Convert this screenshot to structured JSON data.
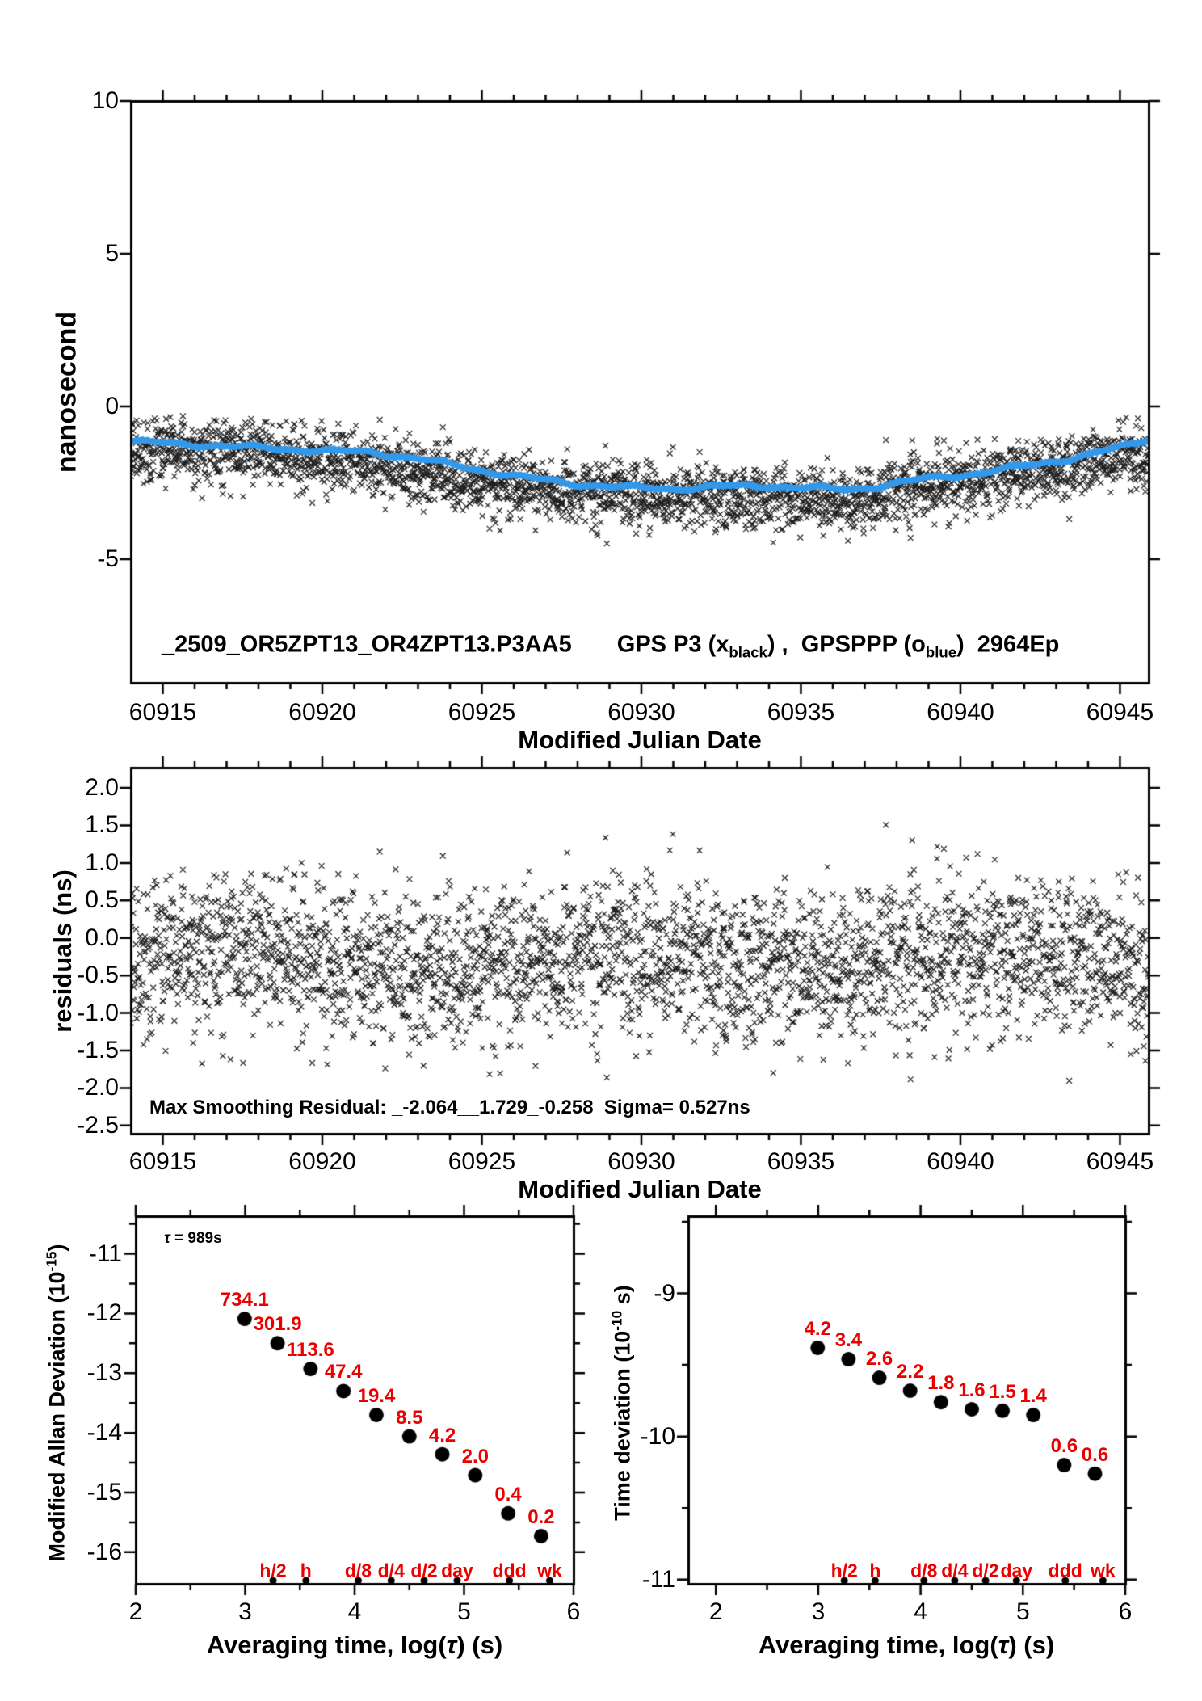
{
  "colors": {
    "black": "#000000",
    "blue": "#3399EB",
    "red": "#EB0000"
  },
  "chart_data": [
    {
      "id": "top-comparison",
      "type": "scatter",
      "title_file": "_2509_OR5ZPT13_OR4ZPT13.P3AA5",
      "legend": {
        "pre": "GPS P3 (x",
        "sub1": "black",
        "mid": ") ,  GPSPPP (o",
        "sub2": "blue",
        "post": ")  2964Ep"
      },
      "xlabel": "Modified Julian Date",
      "ylabel": "nanosecond",
      "xlim": [
        60914.0,
        60945.9
      ],
      "ylim": [
        -9.05,
        10.0
      ],
      "xticks": [
        60915,
        60920,
        60925,
        60930,
        60935,
        60940,
        60945
      ],
      "xtick_minor_step": 1,
      "yticks": [
        10,
        5,
        0,
        -5
      ],
      "ytick_labels": [
        "10",
        "5",
        "0",
        "-5"
      ],
      "epochs": 2964,
      "series": [
        {
          "name": "GPS P3",
          "marker": "x",
          "color": "#000000"
        },
        {
          "name": "GPSPPP smoothed",
          "marker": "o",
          "color": "#3399EB",
          "trend_x": [
            60914.0,
            60916,
            60918,
            60920,
            60921.5,
            60923,
            60925,
            60926.5,
            60928,
            60929.5,
            60931,
            60932.5,
            60934,
            60935.5,
            60936.5,
            60937.5,
            60939,
            60940.5,
            60942,
            60943.5,
            60945,
            60945.9
          ],
          "trend_y": [
            -1.15,
            -1.25,
            -1.35,
            -1.45,
            -1.5,
            -1.7,
            -2.1,
            -2.35,
            -2.55,
            -2.65,
            -2.7,
            -2.62,
            -2.6,
            -2.68,
            -2.72,
            -2.6,
            -2.35,
            -2.2,
            -1.95,
            -1.7,
            -1.35,
            -1.05
          ]
        }
      ],
      "noise": {
        "count": 2964,
        "sigma": 0.527,
        "mean": -0.3,
        "clip_min": -2.064,
        "clip_max": 1.729,
        "seed": 20250917
      }
    },
    {
      "id": "residuals",
      "type": "scatter",
      "xlabel": "Modified Julian Date",
      "ylabel": "residuals (ns)",
      "xlim": [
        60914.0,
        60945.9
      ],
      "ylim": [
        -2.61,
        2.27
      ],
      "xticks": [
        60915,
        60920,
        60925,
        60930,
        60935,
        60940,
        60945
      ],
      "xtick_minor_step": 1,
      "yticks": [
        2.0,
        1.5,
        1.0,
        0.5,
        0.0,
        -0.5,
        -1.0,
        -1.5,
        -2.0,
        -2.5
      ],
      "ytick_labels": [
        "2.0",
        "1.5",
        "1.0",
        "0.5",
        "0.0",
        "-0.5",
        "-1.0",
        "-1.5",
        "-2.0",
        "-2.5"
      ],
      "annotation": "Max Smoothing Residual: _-2.064__1.729_-0.258  Sigma= 0.527ns",
      "series": [
        {
          "name": "smoothing residuals",
          "marker": "x",
          "color": "#000000"
        }
      ]
    },
    {
      "id": "modified-allan-deviation",
      "type": "scatter",
      "xlabel_parts": {
        "pre": "Averaging time, log(",
        "tau": "τ",
        "post": ") (s)"
      },
      "ylabel_parts": {
        "pre": "Modified Allan Deviation (10",
        "sup": "-15",
        "post": ")"
      },
      "xlim": [
        2.0,
        6.0
      ],
      "ylim": [
        -16.53,
        -10.37
      ],
      "xticks": [
        2,
        3,
        4,
        5,
        6
      ],
      "yticks": [
        -11,
        -12,
        -13,
        -14,
        -15,
        -16
      ],
      "minor_step": 0.5,
      "annotation_tau": "τ",
      "annotation_rest": " = 989s",
      "points_x": [
        2.995,
        3.296,
        3.597,
        3.898,
        4.199,
        4.5,
        4.801,
        5.102,
        5.403,
        5.704
      ],
      "points_y": [
        -12.09,
        -12.5,
        -12.93,
        -13.3,
        -13.7,
        -14.06,
        -14.36,
        -14.71,
        -15.35,
        -15.73
      ],
      "point_labels": [
        "734.1",
        "301.9",
        "113.6",
        "47.4",
        "19.4",
        "8.5",
        "4.2",
        "2.0",
        "0.4",
        "0.2"
      ],
      "tau_marks": {
        "labels": [
          "h/2",
          "h",
          "d/8",
          "d/4",
          "d/2",
          "day",
          "ddd",
          "wk"
        ],
        "x": [
          3.255,
          3.556,
          4.033,
          4.334,
          4.635,
          4.937,
          5.414,
          5.782
        ]
      }
    },
    {
      "id": "time-deviation",
      "type": "scatter",
      "xlabel_parts": {
        "pre": "Averaging time, log(",
        "tau": "τ",
        "post": ") (s)"
      },
      "ylabel_parts": {
        "pre": "Time deviation (10",
        "sup": "-10",
        "post": " s)"
      },
      "xlim": [
        1.73,
        6.0
      ],
      "ylim": [
        -11.03,
        -8.46
      ],
      "xticks": [
        2,
        3,
        4,
        5,
        6
      ],
      "yticks": [
        -9,
        -10,
        -11
      ],
      "minor_step": 0.5,
      "points_x": [
        2.995,
        3.296,
        3.597,
        3.898,
        4.199,
        4.5,
        4.801,
        5.102,
        5.403,
        5.704
      ],
      "points_y": [
        -9.38,
        -9.46,
        -9.59,
        -9.68,
        -9.76,
        -9.81,
        -9.82,
        -9.85,
        -10.2,
        -10.26
      ],
      "point_labels": [
        "4.2",
        "3.4",
        "2.6",
        "2.2",
        "1.8",
        "1.6",
        "1.5",
        "1.4",
        "0.6",
        "0.6"
      ],
      "tau_marks": {
        "labels": [
          "h/2",
          "h",
          "d/8",
          "d/4",
          "d/2",
          "day",
          "ddd",
          "wk"
        ],
        "x": [
          3.255,
          3.556,
          4.033,
          4.334,
          4.635,
          4.937,
          5.414,
          5.782
        ]
      }
    }
  ]
}
